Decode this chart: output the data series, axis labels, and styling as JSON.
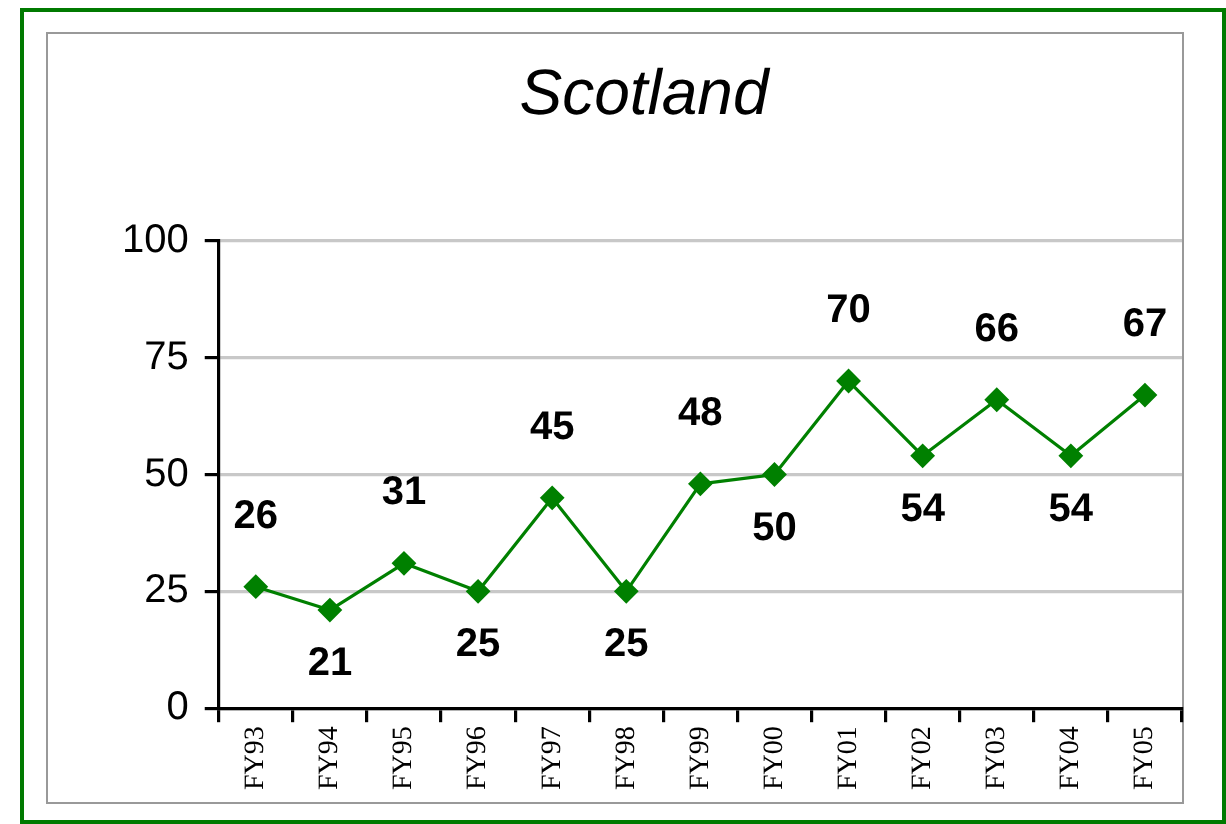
{
  "chart_data": {
    "type": "line",
    "title": "Scotland",
    "categories": [
      "FY93",
      "FY94",
      "FY95",
      "FY96",
      "FY97",
      "FY98",
      "FY99",
      "FY00",
      "FY01",
      "FY02",
      "FY03",
      "FY04",
      "FY05"
    ],
    "series": [
      {
        "color": "#008000",
        "values": [
          26,
          21,
          31,
          25,
          45,
          25,
          48,
          50,
          70,
          54,
          66,
          54,
          67
        ]
      }
    ],
    "ylim": [
      0,
      100
    ],
    "yticks": [
      0,
      25,
      50,
      75,
      100
    ],
    "grid": "y",
    "marker": "diamond",
    "data_labels": true
  }
}
